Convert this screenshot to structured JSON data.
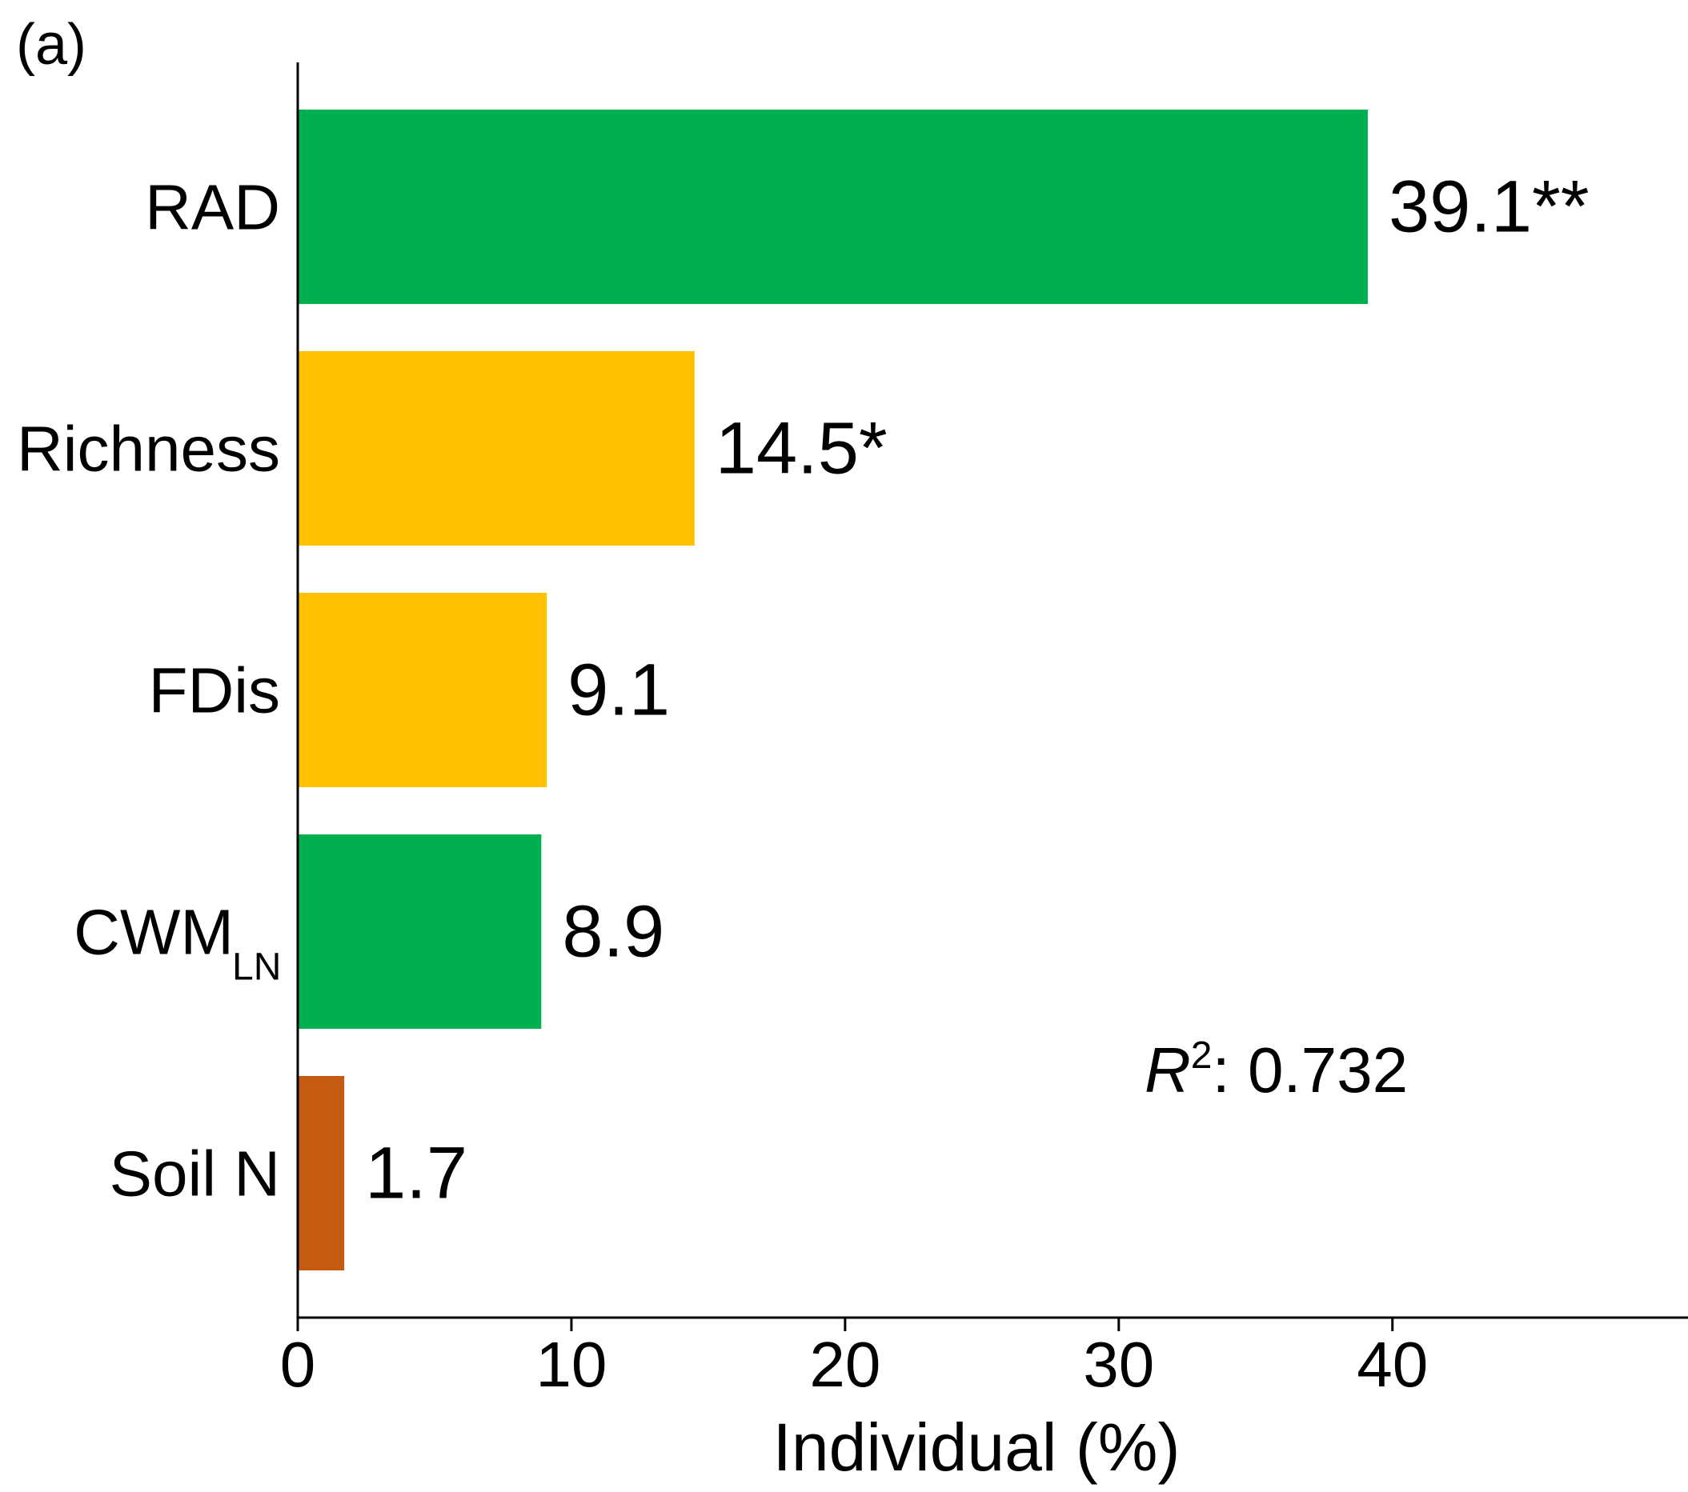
{
  "panel_label": "(a)",
  "annotation": {
    "r2_symbol": "R",
    "r2_power": "2",
    "r2_text": ": 0.732"
  },
  "chart_data": {
    "type": "bar",
    "orientation": "horizontal",
    "categories": [
      "RAD",
      "Richness",
      "FDis",
      "CWM",
      "Soil N"
    ],
    "category_subscripts": [
      "",
      "",
      "",
      "LN",
      ""
    ],
    "values": [
      39.1,
      14.5,
      9.1,
      8.9,
      1.7
    ],
    "value_labels": [
      "39.1**",
      "14.5*",
      "9.1",
      "8.9",
      "1.7"
    ],
    "colors": [
      "#00B050",
      "#FFC000",
      "#FFC000",
      "#00B050",
      "#C55A11"
    ],
    "xlabel": "Individual (%)",
    "ylabel": "",
    "xticks": [
      0,
      10,
      20,
      30,
      40
    ],
    "xlim": [
      0,
      50.8
    ],
    "grid": false
  }
}
